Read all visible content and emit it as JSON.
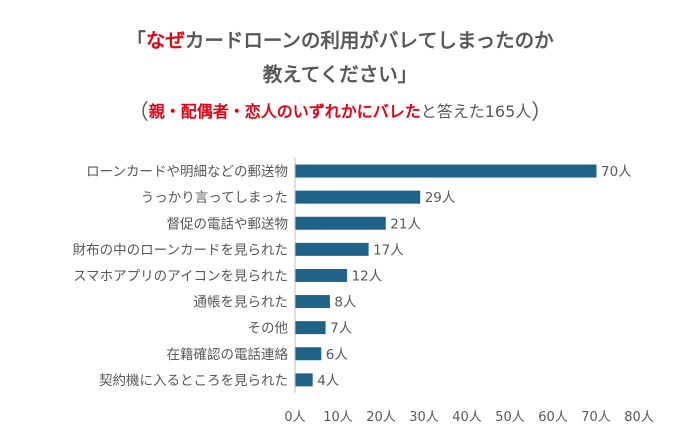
{
  "title": {
    "line1_open": "「",
    "line1_highlight": "なぜ",
    "line1_rest": "カードローンの利用がバレてしまったのか",
    "line2": "教えてください」"
  },
  "subtitle": {
    "open": "（",
    "highlight": "親・配偶者・恋人のいずれかにバレた",
    "rest": "と答えた165人",
    "close": "）"
  },
  "colors": {
    "bar": "#1f6389",
    "highlight": "#e60012",
    "text": "#595959",
    "axis": "#bfbfbf"
  },
  "chart_data": {
    "type": "bar",
    "orientation": "horizontal",
    "categories": [
      "ローンカードや明細などの郵送物",
      "うっかり言ってしまった",
      "督促の電話や郵送物",
      "財布の中のローンカードを見られた",
      "スマホアプリのアイコンを見られた",
      "通帳を見られた",
      "その他",
      "在籍確認の電話連絡",
      "契約機に入るところを見られた"
    ],
    "values": [
      70,
      29,
      21,
      17,
      12,
      8,
      7,
      6,
      4
    ],
    "value_labels": [
      "70人",
      "29人",
      "21人",
      "17人",
      "12人",
      "8人",
      "7人",
      "6人",
      "4人"
    ],
    "xlim": [
      0,
      80
    ],
    "x_ticks": [
      0,
      10,
      20,
      30,
      40,
      50,
      60,
      70,
      80
    ],
    "x_tick_labels": [
      "0人",
      "10人",
      "20人",
      "30人",
      "40人",
      "50人",
      "60人",
      "70人",
      "80人"
    ],
    "grid": false
  }
}
